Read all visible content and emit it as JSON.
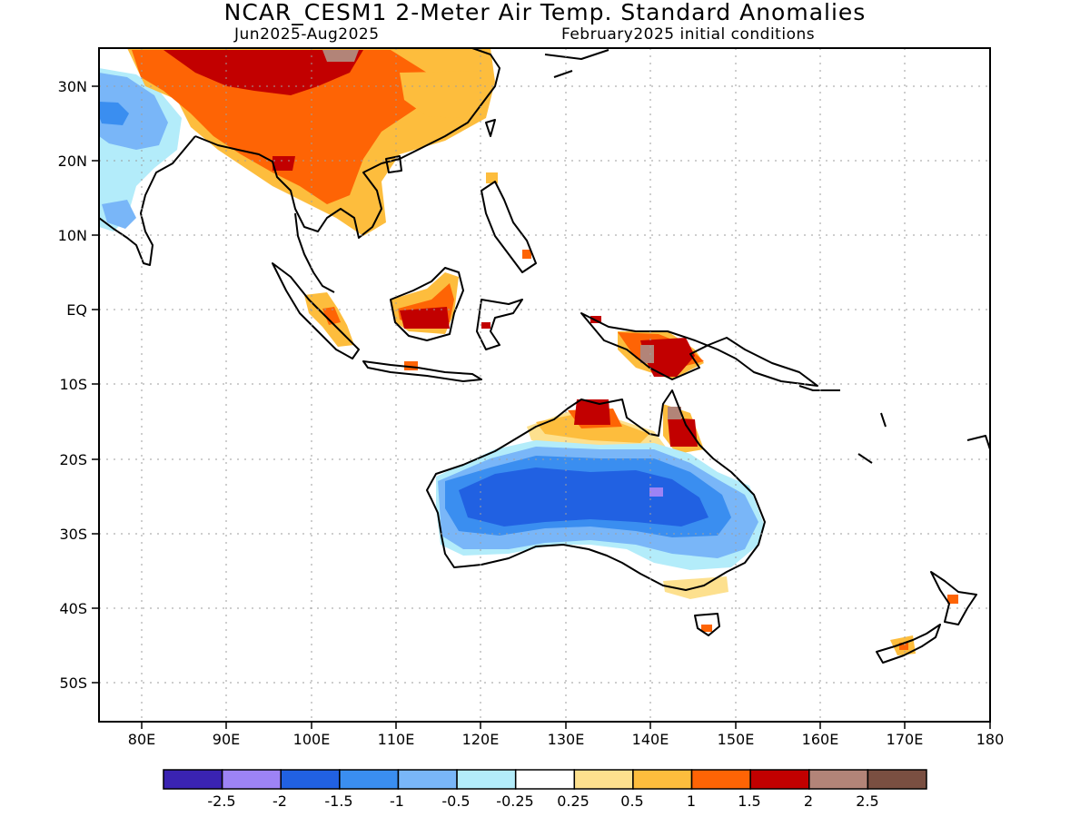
{
  "header": {
    "title": "NCAR_CESM1 2-Meter Air Temp. Standard Anomalies",
    "period": "Jun2025-Aug2025",
    "init": "February2025 initial conditions"
  },
  "map": {
    "lat_labels": [
      "30N",
      "20N",
      "10N",
      "EQ",
      "10S",
      "20S",
      "30S",
      "40S",
      "50S"
    ],
    "lat_values": [
      30,
      20,
      10,
      0,
      -10,
      -20,
      -30,
      -40,
      -50
    ],
    "lon_labels": [
      "80E",
      "90E",
      "100E",
      "110E",
      "120E",
      "130E",
      "140E",
      "150E",
      "160E",
      "170E",
      "180"
    ],
    "lon_values": [
      80,
      90,
      100,
      110,
      120,
      130,
      140,
      150,
      160,
      170,
      180
    ],
    "extent": {
      "lon_min": 75,
      "lon_max": 180,
      "lat_min": -55,
      "lat_max": 35
    },
    "gridlines": "dotted"
  },
  "legend": {
    "colors": [
      "#3a23b2",
      "#9d83f5",
      "#2161e2",
      "#3a8ef0",
      "#79b6f8",
      "#b3ecfa",
      "#ffffff",
      "#fde08e",
      "#fdbd3d",
      "#fe6405",
      "#c20000",
      "#b28478",
      "#7a4f41"
    ],
    "labels": [
      "-2.5",
      "-2",
      "-1.5",
      "-1",
      "-0.5",
      "-0.25",
      "0.25",
      "0.5",
      "1",
      "1.5",
      "2",
      "2.5"
    ]
  }
}
